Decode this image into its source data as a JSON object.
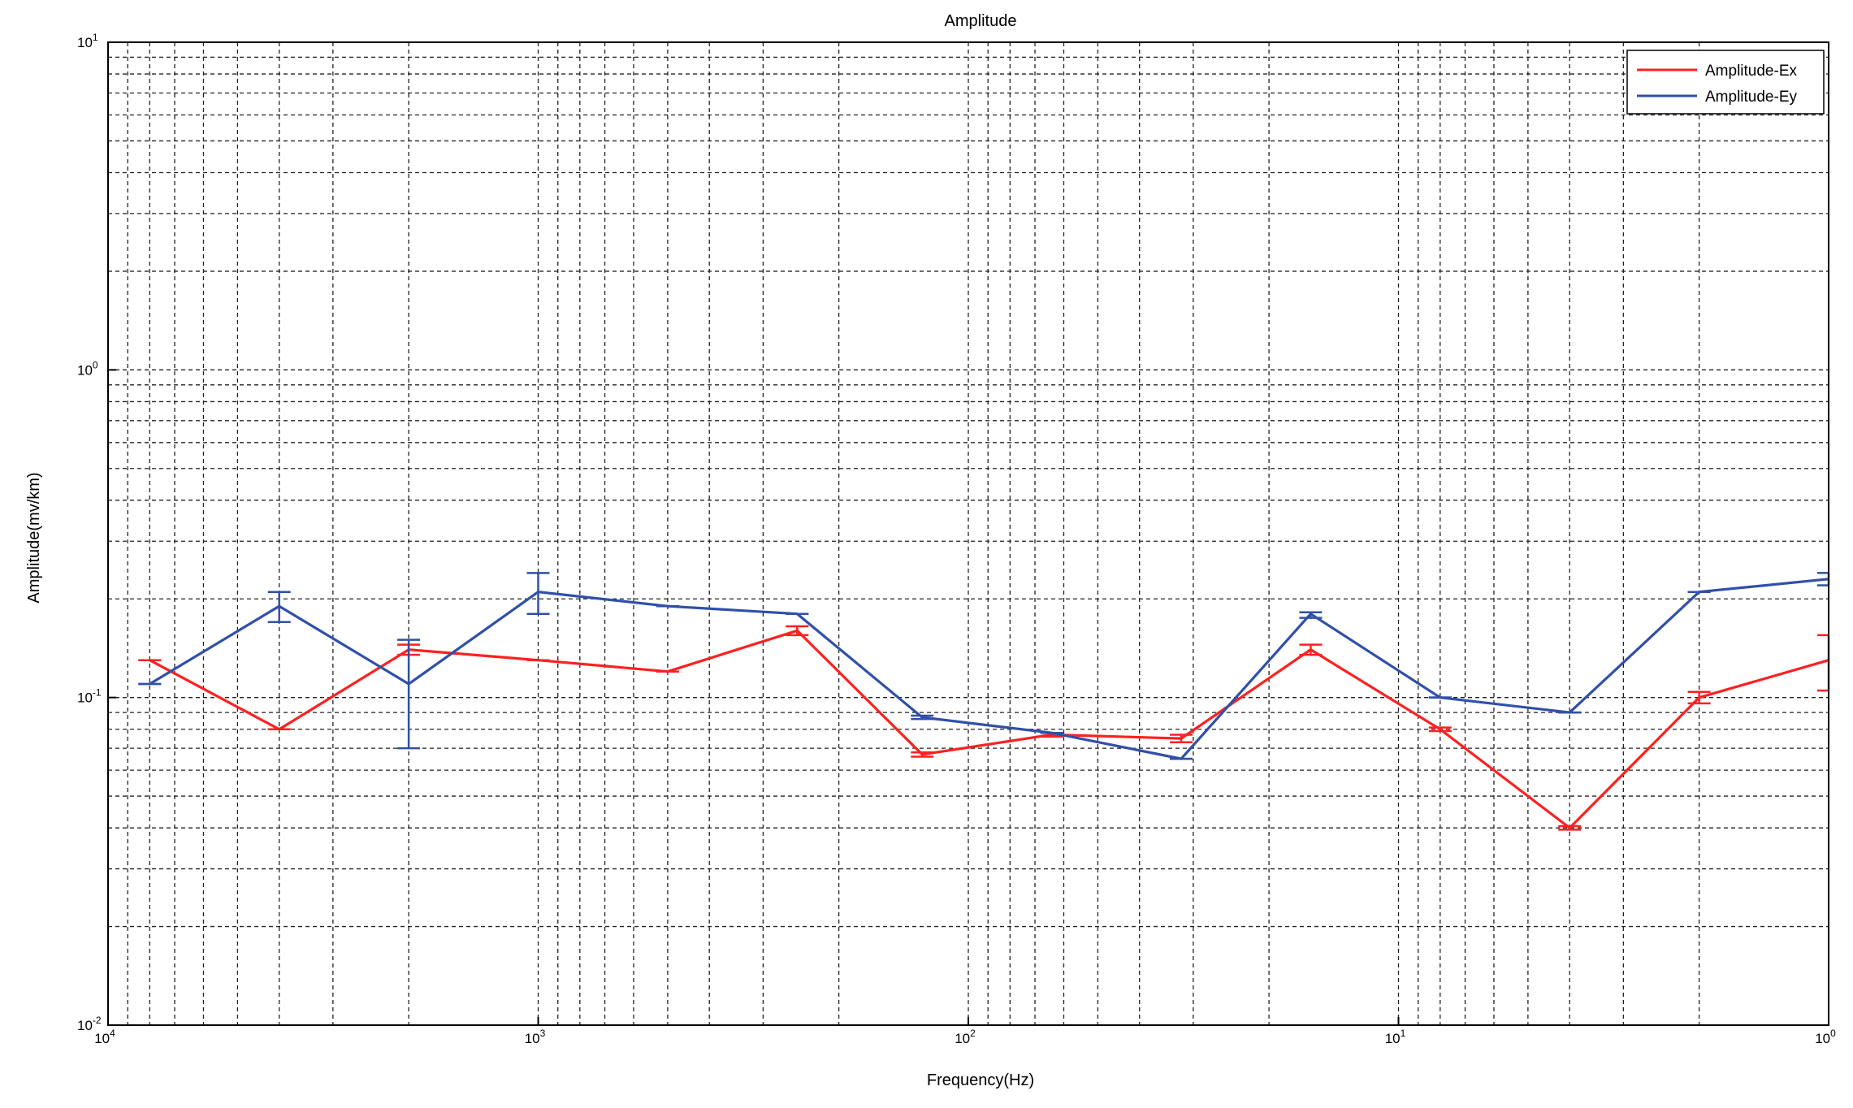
{
  "chart_data": {
    "type": "line",
    "title": "Amplitude",
    "xlabel": "Frequency(Hz)",
    "ylabel": "Amplitude(mv/km)",
    "x_scale": "log",
    "y_scale": "log",
    "x_reversed": true,
    "xlim": [
      10000,
      1
    ],
    "ylim": [
      0.01,
      10
    ],
    "grid": true,
    "legend_position": "top-right",
    "x_ticks": [
      {
        "base": "10",
        "exp": "4",
        "value": 10000
      },
      {
        "base": "10",
        "exp": "3",
        "value": 1000
      },
      {
        "base": "10",
        "exp": "2",
        "value": 100
      },
      {
        "base": "10",
        "exp": "1",
        "value": 10
      },
      {
        "base": "10",
        "exp": "0",
        "value": 1
      }
    ],
    "y_ticks": [
      {
        "base": "10",
        "exp": "-2",
        "value": 0.01
      },
      {
        "base": "10",
        "exp": "-1",
        "value": 0.1
      },
      {
        "base": "10",
        "exp": "0",
        "value": 1
      },
      {
        "base": "10",
        "exp": "1",
        "value": 10
      }
    ],
    "series": [
      {
        "name": "Amplitude-Ex",
        "color": "#ff2020",
        "x": [
          8000,
          4000,
          2000,
          1000,
          500,
          250,
          128,
          64,
          32,
          16,
          8,
          4,
          2,
          1
        ],
        "y": [
          0.13,
          0.08,
          0.14,
          0.13,
          0.12,
          0.16,
          0.067,
          0.077,
          0.075,
          0.14,
          0.08,
          0.04,
          0.1,
          0.13
        ],
        "err_low": [
          0.13,
          0.08,
          0.135,
          0.13,
          0.12,
          0.155,
          0.066,
          0.076,
          0.073,
          0.135,
          0.079,
          0.0395,
          0.096,
          0.105
        ],
        "err_high": [
          0.13,
          0.08,
          0.145,
          0.13,
          0.12,
          0.165,
          0.068,
          0.078,
          0.077,
          0.145,
          0.081,
          0.0405,
          0.104,
          0.155
        ]
      },
      {
        "name": "Amplitude-Ey",
        "color": "#3050a8",
        "x": [
          8000,
          4000,
          2000,
          1000,
          500,
          250,
          128,
          64,
          32,
          16,
          8,
          4,
          2,
          1
        ],
        "y": [
          0.11,
          0.19,
          0.11,
          0.21,
          0.19,
          0.18,
          0.087,
          0.078,
          0.065,
          0.18,
          0.1,
          0.09,
          0.21,
          0.23
        ],
        "err_low": [
          0.11,
          0.17,
          0.07,
          0.18,
          0.19,
          0.18,
          0.086,
          0.078,
          0.065,
          0.175,
          0.1,
          0.09,
          0.21,
          0.22
        ],
        "err_high": [
          0.11,
          0.21,
          0.15,
          0.24,
          0.19,
          0.18,
          0.088,
          0.078,
          0.065,
          0.182,
          0.1,
          0.09,
          0.21,
          0.24
        ]
      }
    ]
  }
}
